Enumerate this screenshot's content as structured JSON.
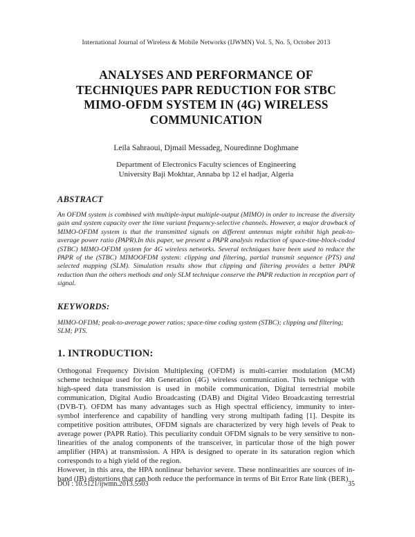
{
  "paper": {
    "journal_header": "International Journal of Wireless & Mobile Networks (IJWMN) Vol. 5, No. 5, October 2013",
    "title": "ANALYSES AND PERFORMANCE OF TECHNIQUES PAPR REDUCTION FOR STBC MIMO-OFDM SYSTEM IN (4G) WIRELESS COMMUNICATION",
    "authors": "Leila Sahraoui, Djmail Messadeg, Nouredinne Doghmane",
    "affiliation": {
      "line1": "Department of Electronics Faculty sciences of Engineering",
      "line2": "University Baji Mokhtar, Annaba bp 12 el hadjar, Algeria"
    },
    "abstract": {
      "heading": "ABSTRACT",
      "body": "An OFDM system is combined with multiple-input multiple-output (MIMO)  in order to increase the diversity gain and system capacity over the time variant frequency-selective channels.  However, a major drawback of MIMO-OFDM system is that the transmitted signals on different antennas might exhibit high peak-to-average power ratio (PAPR).In this paper, we present a PAPR analysis reduction of space-time-block-coded (STBC) MIMO-OFDM system for 4G wireless networks. Several techniques have been used to reduce the PAPR of the (STBC) MIMOOFDM system: clipping and filtering, partial transmit sequence (PTS) and selected mapping (SLM). Simulation results show that clipping and filtering provides a better PAPR reduction than the others methods and only SLM technique conserve the PAPR reduction in reception part of signal."
    },
    "keywords": {
      "heading": "KEYWORDS:",
      "body": "MIMO-OFDM; peak-to-average power ratios; space-time coding system (STBC); clipping and filtering; SLM; PTS."
    },
    "introduction": {
      "heading": "1. INTRODUCTION:",
      "para1": "Orthogonal Frequency Division Multiplexing (OFDM) is multi-carrier modulation (MCM) scheme technique used for 4th Generation (4G) wireless communication. This technique with high-speed data transmission is used in mobile communication, Digital terrestrial mobile communication, Digital Audio Broadcasting (DAB) and Digital Video Broadcasting terrestrial (DVB-T). OFDM has many advantages such as High spectral efficiency, immunity to inter-symbol interference and capability of handling very strong multipath fading [1]. Despite its competitive position attributes, OFDM signals are characterized by very high levels of Peak to average power (PAPR Ratio). This peculiarity conduit OFDM signals to be very sensitive to non-linearities of the analog components of the transceiver, in particular those of the high power amplifier (HPA) at transmission. A HPA is designed to operate in its saturation region which corresponds to a high yield of the region.",
      "para2": "However, in this area, the HPA nonlinear behavior severe. These nonlinearities are sources of in-band (IB) distortions that can both reduce the performance in terms of Bit Error Rate link (BER)"
    },
    "footer": {
      "doi": "DOI : 10.5121/ijwmn.2013.5503",
      "page_number": "35"
    },
    "colors": {
      "page_background": "#ffffff",
      "text": "#1f1f1f"
    }
  }
}
